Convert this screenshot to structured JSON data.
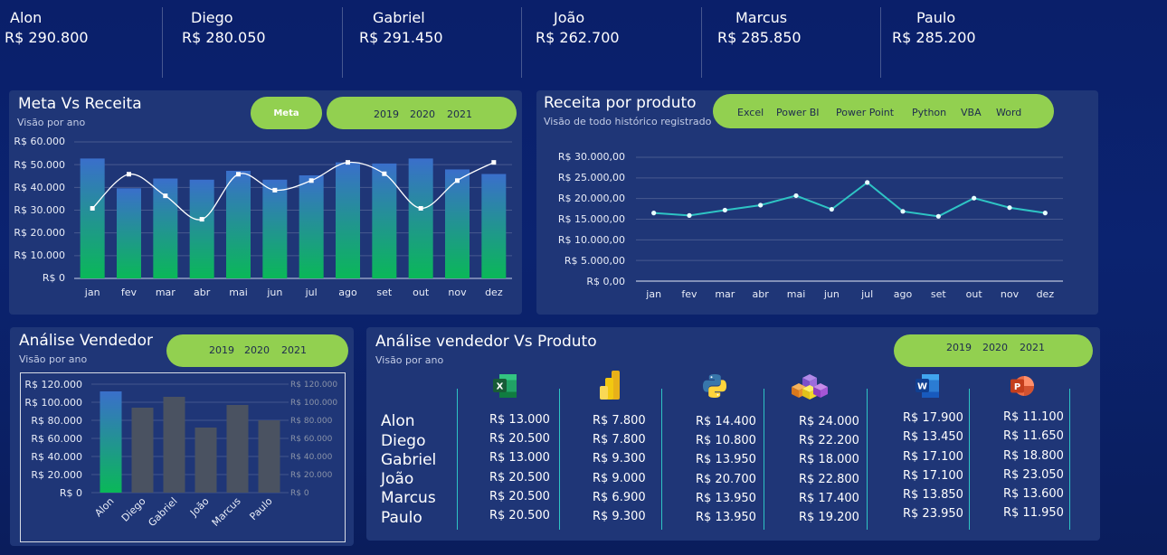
{
  "kpis": [
    {
      "name": "Alon",
      "value": "R$ 290.800"
    },
    {
      "name": "Diego",
      "value": "R$ 280.050"
    },
    {
      "name": "Gabriel",
      "value": "R$ 291.450"
    },
    {
      "name": "João",
      "value": "R$ 262.700"
    },
    {
      "name": "Marcus",
      "value": "R$ 285.850"
    },
    {
      "name": "Paulo",
      "value": "R$ 285.200"
    }
  ],
  "meta_panel": {
    "title": "Meta Vs Receita",
    "subtitle": "Visão por ano",
    "meta_button": "Meta",
    "years": [
      "2019",
      "2020",
      "2021"
    ],
    "y_ticks": [
      "R$ 60.000",
      "R$ 50.000",
      "R$ 40.000",
      "R$ 30.000",
      "R$ 20.000",
      "R$ 10.000",
      "R$ 0"
    ],
    "months": [
      "jan",
      "fev",
      "mar",
      "abr",
      "mai",
      "jun",
      "jul",
      "ago",
      "set",
      "out",
      "nov",
      "dez"
    ]
  },
  "produto_panel": {
    "title": "Receita por produto",
    "subtitle": "Visão de todo histórico registrado",
    "products": [
      "Excel",
      "Power BI",
      "Power Point",
      "Python",
      "VBA",
      "Word"
    ],
    "y_ticks": [
      "R$ 30.000,00",
      "R$ 25.000,00",
      "R$ 20.000,00",
      "R$ 15.000,00",
      "R$ 10.000,00",
      "R$ 5.000,00",
      "R$ 0,00"
    ],
    "months": [
      "jan",
      "fev",
      "mar",
      "abr",
      "mai",
      "jun",
      "jul",
      "ago",
      "set",
      "out",
      "nov",
      "dez"
    ]
  },
  "vendedor_panel": {
    "title": "Análise Vendedor",
    "subtitle": "Visão por ano",
    "years": [
      "2019",
      "2020",
      "2021"
    ],
    "y_ticks": [
      "R$ 120.000",
      "R$ 100.000",
      "R$ 80.000",
      "R$ 60.000",
      "R$ 40.000",
      "R$ 20.000",
      "R$ 0"
    ],
    "sellers": [
      "Alon",
      "Diego",
      "Gabriel",
      "João",
      "Marcus",
      "Paulo"
    ]
  },
  "vp_panel": {
    "title": "Análise vendedor Vs Produto",
    "subtitle": "Visão por ano",
    "years": [
      "2019",
      "2020",
      "2021"
    ],
    "sellers": [
      "Alon",
      "Diego",
      "Gabriel",
      "João",
      "Marcus",
      "Paulo"
    ],
    "columns": [
      {
        "icon": "excel-icon",
        "values": [
          "R$ 13.000",
          "R$ 20.500",
          "R$ 13.000",
          "R$ 20.500",
          "R$ 20.500",
          "R$ 20.500"
        ]
      },
      {
        "icon": "powerbi-icon",
        "values": [
          "R$ 7.800",
          "R$ 7.800",
          "R$ 9.300",
          "R$ 9.000",
          "R$ 6.900",
          "R$ 9.300"
        ]
      },
      {
        "icon": "python-icon",
        "values": [
          "R$ 14.400",
          "R$ 10.800",
          "R$ 13.950",
          "R$ 20.700",
          "R$ 13.950",
          "R$ 13.950"
        ]
      },
      {
        "icon": "vba-icon",
        "values": [
          "R$ 24.000",
          "R$ 22.200",
          "R$ 18.000",
          "R$ 22.800",
          "R$ 17.400",
          "R$ 19.200"
        ]
      },
      {
        "icon": "word-icon",
        "values": [
          "R$ 17.900",
          "R$ 13.450",
          "R$ 17.100",
          "R$ 17.100",
          "R$ 13.850",
          "R$ 23.950"
        ]
      },
      {
        "icon": "powerpoint-icon",
        "values": [
          "R$ 11.100",
          "R$ 11.650",
          "R$ 18.800",
          "R$ 23.050",
          "R$ 13.600",
          "R$ 11.950"
        ]
      }
    ]
  },
  "chart_data": [
    {
      "type": "bar",
      "categories": [
        "jan",
        "fev",
        "mar",
        "abr",
        "mai",
        "jun",
        "jul",
        "ago",
        "set",
        "out",
        "nov",
        "dez"
      ],
      "series": [
        {
          "name": "Receita",
          "type": "bar",
          "values": [
            52700,
            39600,
            43900,
            43400,
            47300,
            43400,
            45300,
            51000,
            50500,
            52700,
            47900,
            45900
          ]
        },
        {
          "name": "Meta",
          "type": "line",
          "values": [
            30800,
            45800,
            36300,
            26000,
            45800,
            38800,
            43000,
            51000,
            46000,
            30800,
            43000,
            51000
          ]
        }
      ],
      "ylim": [
        0,
        60000
      ],
      "y_tick_labels": [
        "R$ 0",
        "R$ 10.000",
        "R$ 20.000",
        "R$ 30.000",
        "R$ 40.000",
        "R$ 50.000",
        "R$ 60.000"
      ],
      "colors": {
        "bar_top": "#3a6fcb",
        "bar_bottom": "#0ab858",
        "line": "#ffffff"
      }
    },
    {
      "type": "line",
      "categories": [
        "jan",
        "fev",
        "mar",
        "abr",
        "mai",
        "jun",
        "jul",
        "ago",
        "set",
        "out",
        "nov",
        "dez"
      ],
      "series": [
        {
          "values": [
            16500,
            15900,
            17200,
            18400,
            20700,
            17400,
            23900,
            16900,
            15700,
            20100,
            17800,
            16500
          ]
        }
      ],
      "ylim": [
        0,
        30000
      ],
      "y_tick_labels": [
        "R$ 0,00",
        "R$ 5.000,00",
        "R$ 10.000,00",
        "R$ 15.000,00",
        "R$ 20.000,00",
        "R$ 25.000,00",
        "R$ 30.000,00"
      ],
      "colors": {
        "line": "#2ec4c4"
      }
    },
    {
      "type": "bar",
      "categories": [
        "Alon",
        "Diego",
        "Gabriel",
        "João",
        "Marcus",
        "Paulo"
      ],
      "series": [
        {
          "values": [
            112000,
            94000,
            106000,
            72000,
            97000,
            80000
          ]
        }
      ],
      "ylim": [
        0,
        120000
      ],
      "y_tick_labels": [
        "R$ 0",
        "R$ 20.000",
        "R$ 40.000",
        "R$ 60.000",
        "R$ 80.000",
        "R$ 100.000",
        "R$ 120.000"
      ],
      "colors": {
        "highlight_top": "#3a6fcb",
        "highlight_bottom": "#0ab858",
        "muted": "#4a5261"
      }
    }
  ],
  "colors": {
    "background": "#0b2370",
    "panel": "#1f3677",
    "accent": "#92d050",
    "teal": "#2ec4c4"
  }
}
